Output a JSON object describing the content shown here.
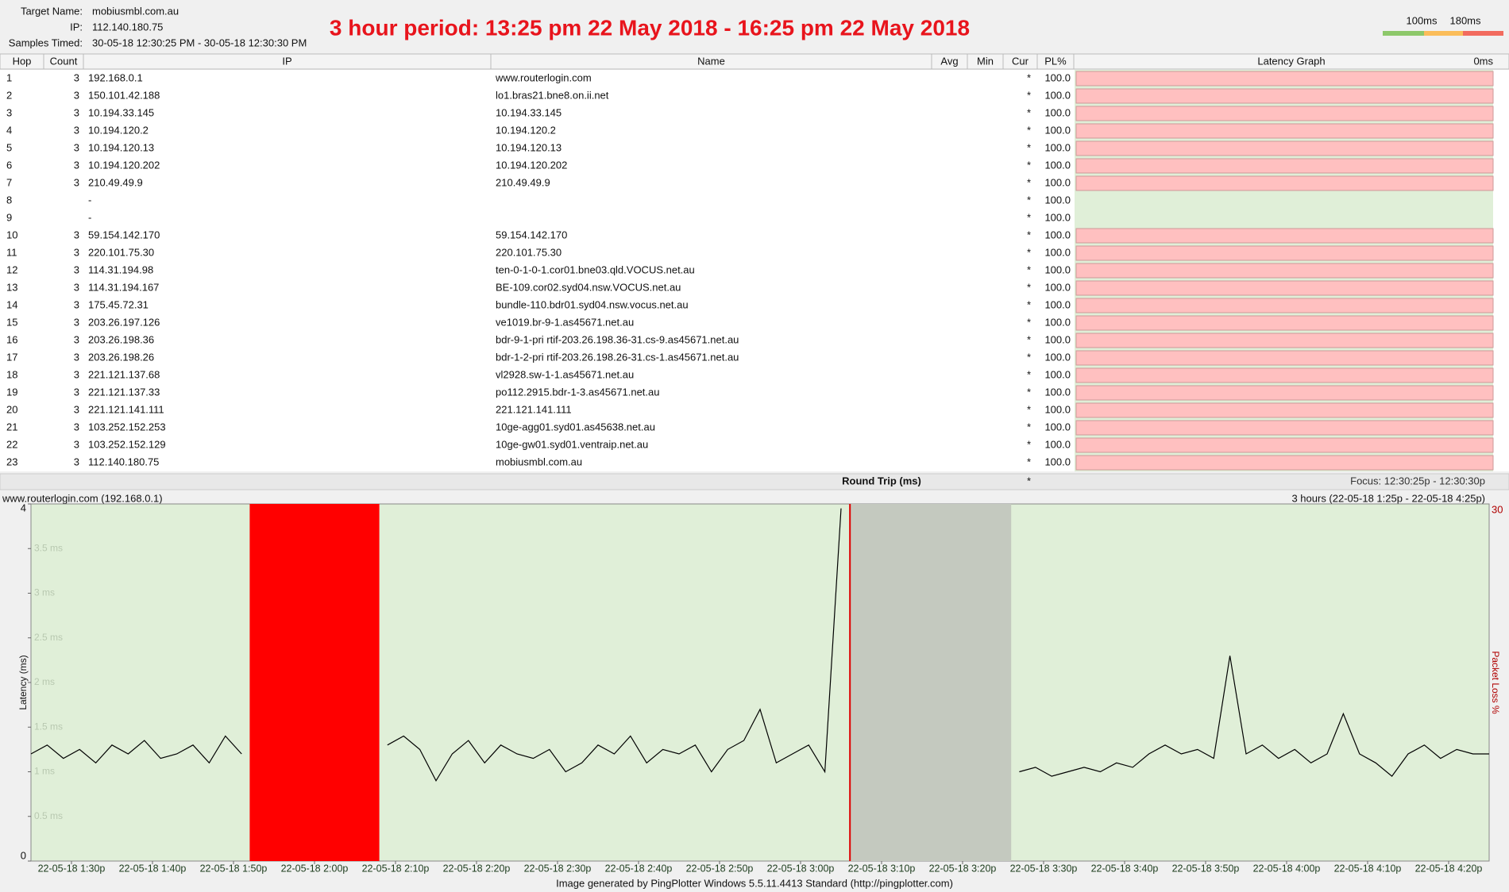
{
  "header": {
    "target_label": "Target Name:",
    "target": "mobiusmbl.com.au",
    "ip_label": "IP:",
    "ip": "112.140.180.75",
    "samples_label": "Samples Timed:",
    "samples": "30-05-18 12:30:25 PM - 30-05-18 12:30:30 PM",
    "title": "3 hour period:  13:25 pm 22 May 2018 - 16:25 pm 22 May 2018"
  },
  "legend": {
    "labels": [
      "100ms",
      "180ms"
    ],
    "colors": [
      "#8dc86a",
      "#fbbd5a",
      "#f26b5e"
    ]
  },
  "table": {
    "columns": [
      "Hop",
      "Count",
      "IP",
      "Name",
      "Avg",
      "Min",
      "Cur",
      "PL%",
      "Latency Graph"
    ],
    "graph_scale": "0ms",
    "rows": [
      {
        "hop": "1",
        "count": "3",
        "ip": "192.168.0.1",
        "name": "www.routerlogin.com",
        "cur": "*",
        "pl": "100.0",
        "bar_color": "#ffc0c0"
      },
      {
        "hop": "2",
        "count": "3",
        "ip": "150.101.42.188",
        "name": "lo1.bras21.bne8.on.ii.net",
        "cur": "*",
        "pl": "100.0",
        "bar_color": "#ffc0c0"
      },
      {
        "hop": "3",
        "count": "3",
        "ip": "10.194.33.145",
        "name": "10.194.33.145",
        "cur": "*",
        "pl": "100.0",
        "bar_color": "#ffc0c0"
      },
      {
        "hop": "4",
        "count": "3",
        "ip": "10.194.120.2",
        "name": "10.194.120.2",
        "cur": "*",
        "pl": "100.0",
        "bar_color": "#ffc0c0"
      },
      {
        "hop": "5",
        "count": "3",
        "ip": "10.194.120.13",
        "name": "10.194.120.13",
        "cur": "*",
        "pl": "100.0",
        "bar_color": "#ffc0c0"
      },
      {
        "hop": "6",
        "count": "3",
        "ip": "10.194.120.202",
        "name": "10.194.120.202",
        "cur": "*",
        "pl": "100.0",
        "bar_color": "#ffc0c0"
      },
      {
        "hop": "7",
        "count": "3",
        "ip": "210.49.49.9",
        "name": "210.49.49.9",
        "cur": "*",
        "pl": "100.0",
        "bar_color": "#ffc0c0"
      },
      {
        "hop": "8",
        "ip": "-",
        "cur": "*",
        "pl": "100.0"
      },
      {
        "hop": "9",
        "ip": "-",
        "cur": "*",
        "pl": "100.0"
      },
      {
        "hop": "10",
        "count": "3",
        "ip": "59.154.142.170",
        "name": "59.154.142.170",
        "cur": "*",
        "pl": "100.0",
        "bar_color": "#ffc0c0"
      },
      {
        "hop": "11",
        "count": "3",
        "ip": "220.101.75.30",
        "name": "220.101.75.30",
        "cur": "*",
        "pl": "100.0",
        "bar_color": "#ffc0c0"
      },
      {
        "hop": "12",
        "count": "3",
        "ip": "114.31.194.98",
        "name": "ten-0-1-0-1.cor01.bne03.qld.VOCUS.net.au",
        "cur": "*",
        "pl": "100.0",
        "bar_color": "#ffc0c0"
      },
      {
        "hop": "13",
        "count": "3",
        "ip": "114.31.194.167",
        "name": "BE-109.cor02.syd04.nsw.VOCUS.net.au",
        "cur": "*",
        "pl": "100.0",
        "bar_color": "#ffc0c0"
      },
      {
        "hop": "14",
        "count": "3",
        "ip": "175.45.72.31",
        "name": "bundle-110.bdr01.syd04.nsw.vocus.net.au",
        "cur": "*",
        "pl": "100.0",
        "bar_color": "#ffc0c0"
      },
      {
        "hop": "15",
        "count": "3",
        "ip": "203.26.197.126",
        "name": "ve1019.br-9-1.as45671.net.au",
        "cur": "*",
        "pl": "100.0",
        "bar_color": "#ffc0c0"
      },
      {
        "hop": "16",
        "count": "3",
        "ip": "203.26.198.36",
        "name": "bdr-9-1-pri rtif-203.26.198.36-31.cs-9.as45671.net.au",
        "cur": "*",
        "pl": "100.0",
        "bar_color": "#ffc0c0"
      },
      {
        "hop": "17",
        "count": "3",
        "ip": "203.26.198.26",
        "name": "bdr-1-2-pri rtif-203.26.198.26-31.cs-1.as45671.net.au",
        "cur": "*",
        "pl": "100.0",
        "bar_color": "#ffc0c0"
      },
      {
        "hop": "18",
        "count": "3",
        "ip": "221.121.137.68",
        "name": "vl2928.sw-1-1.as45671.net.au",
        "cur": "*",
        "pl": "100.0",
        "bar_color": "#ffc0c0"
      },
      {
        "hop": "19",
        "count": "3",
        "ip": "221.121.137.33",
        "name": "po112.2915.bdr-1-3.as45671.net.au",
        "cur": "*",
        "pl": "100.0",
        "bar_color": "#ffc0c0"
      },
      {
        "hop": "20",
        "count": "3",
        "ip": "221.121.141.111",
        "name": "221.121.141.111",
        "cur": "*",
        "pl": "100.0",
        "bar_color": "#ffc0c0"
      },
      {
        "hop": "21",
        "count": "3",
        "ip": "103.252.152.253",
        "name": "10ge-agg01.syd01.as45638.net.au",
        "cur": "*",
        "pl": "100.0",
        "bar_color": "#ffc0c0"
      },
      {
        "hop": "22",
        "count": "3",
        "ip": "103.252.152.129",
        "name": "10ge-gw01.syd01.ventraip.net.au",
        "cur": "*",
        "pl": "100.0",
        "bar_color": "#ffc0c0"
      },
      {
        "hop": "23",
        "count": "3",
        "ip": "112.140.180.75",
        "name": "mobiusmbl.com.au",
        "cur": "*",
        "pl": "100.0",
        "bar_color": "#ffc0c0"
      }
    ],
    "footer_label": "Round Trip (ms)",
    "footer_cur": "*",
    "focus": "Focus: 12:30:25p - 12:30:30p"
  },
  "chart_data": {
    "type": "line",
    "title": "www.routerlogin.com (192.168.0.1)",
    "subtitle": "3 hours (22-05-18 1:25p - 22-05-18 4:25p)",
    "y_label": "Latency (ms)",
    "y2_label": "Packet Loss %",
    "color": "#000000",
    "background": "#e0efd8",
    "x": [
      "13:25",
      "13:27",
      "13:29",
      "13:31",
      "13:33",
      "13:35",
      "13:37",
      "13:39",
      "13:41",
      "13:43",
      "13:45",
      "13:47",
      "13:49",
      "13:51",
      "13:53",
      "13:55",
      "13:57",
      "13:59",
      "14:01",
      "14:03",
      "14:05",
      "14:07",
      "14:09",
      "14:11",
      "14:13",
      "14:15",
      "14:17",
      "14:19",
      "14:21",
      "14:23",
      "14:25",
      "14:27",
      "14:29",
      "14:31",
      "14:33",
      "14:35",
      "14:37",
      "14:39",
      "14:41",
      "14:43",
      "14:45",
      "14:47",
      "14:49",
      "14:51",
      "14:53",
      "14:55",
      "14:57",
      "14:59",
      "15:01",
      "15:03",
      "15:05",
      "15:07",
      "15:09",
      "15:11",
      "15:13",
      "15:15",
      "15:17",
      "15:19",
      "15:21",
      "15:23",
      "15:25",
      "15:27",
      "15:29",
      "15:31",
      "15:33",
      "15:35",
      "15:37",
      "15:39",
      "15:41",
      "15:43",
      "15:45",
      "15:47",
      "15:49",
      "15:51",
      "15:53",
      "15:55",
      "15:57",
      "15:59",
      "16:01",
      "16:03",
      "16:05",
      "16:07",
      "16:09",
      "16:11",
      "16:13",
      "16:15",
      "16:17",
      "16:19",
      "16:21",
      "16:23",
      "16:25"
    ],
    "values": [
      1.2,
      1.3,
      1.15,
      1.25,
      1.1,
      1.3,
      1.2,
      1.35,
      1.15,
      1.2,
      1.3,
      1.1,
      1.4,
      1.2,
      null,
      null,
      null,
      null,
      null,
      null,
      null,
      null,
      1.3,
      1.4,
      1.25,
      0.9,
      1.2,
      1.35,
      1.1,
      1.3,
      1.2,
      1.15,
      1.25,
      1.0,
      1.1,
      1.3,
      1.2,
      1.4,
      1.1,
      1.25,
      1.2,
      1.3,
      1.0,
      1.25,
      1.35,
      1.7,
      1.1,
      1.2,
      1.3,
      1.0,
      3.95,
      null,
      null,
      null,
      null,
      null,
      null,
      null,
      null,
      null,
      null,
      1.0,
      1.05,
      0.95,
      1.0,
      1.05,
      1.0,
      1.1,
      1.05,
      1.2,
      1.3,
      1.2,
      1.25,
      1.15,
      2.3,
      1.2,
      1.3,
      1.15,
      1.25,
      1.1,
      1.2,
      1.65,
      1.2,
      1.1,
      0.95,
      1.2,
      1.3,
      1.15,
      1.25,
      1.2,
      1.2
    ],
    "loss_periods": [
      {
        "start": "13:52",
        "end": "14:08",
        "color": "#ff0000"
      },
      {
        "start": "15:06",
        "end": "15:26",
        "color": "#c4c9bf"
      },
      {
        "start": "15:06",
        "end": "15:06",
        "color": "#e00000"
      }
    ],
    "xlim": [
      "13:25",
      "16:25"
    ],
    "xticks": [
      {
        "value": "13:30",
        "label": "22-05-18 1:30p"
      },
      {
        "value": "13:40",
        "label": "22-05-18 1:40p"
      },
      {
        "value": "13:50",
        "label": "22-05-18 1:50p"
      },
      {
        "value": "14:00",
        "label": "22-05-18 2:00p"
      },
      {
        "value": "14:10",
        "label": "22-05-18 2:10p"
      },
      {
        "value": "14:20",
        "label": "22-05-18 2:20p"
      },
      {
        "value": "14:30",
        "label": "22-05-18 2:30p"
      },
      {
        "value": "14:40",
        "label": "22-05-18 2:40p"
      },
      {
        "value": "14:50",
        "label": "22-05-18 2:50p"
      },
      {
        "value": "15:00",
        "label": "22-05-18 3:00p"
      },
      {
        "value": "15:10",
        "label": "22-05-18 3:10p"
      },
      {
        "value": "15:20",
        "label": "22-05-18 3:20p"
      },
      {
        "value": "15:30",
        "label": "22-05-18 3:30p"
      },
      {
        "value": "15:40",
        "label": "22-05-18 3:40p"
      },
      {
        "value": "15:50",
        "label": "22-05-18 3:50p"
      },
      {
        "value": "16:00",
        "label": "22-05-18 4:00p"
      },
      {
        "value": "16:10",
        "label": "22-05-18 4:10p"
      },
      {
        "value": "16:20",
        "label": "22-05-18 4:20p"
      }
    ],
    "ylim": [
      0,
      4
    ],
    "yticks": [
      0,
      {
        "value": 0.5,
        "label": "0.5 ms"
      },
      {
        "value": 1,
        "label": "1 ms"
      },
      {
        "value": 1.5,
        "label": "1.5 ms"
      },
      {
        "value": 2,
        "label": "2 ms"
      },
      {
        "value": 2.5,
        "label": "2.5 ms"
      },
      {
        "value": 3,
        "label": "3 ms"
      },
      {
        "value": 3.5,
        "label": "3.5 ms"
      },
      4
    ],
    "y2lim": [
      0,
      30
    ],
    "y2ticks": [
      30
    ]
  },
  "credit": "Image generated by PingPlotter Windows 5.5.11.4413 Standard (http://pingplotter.com)"
}
